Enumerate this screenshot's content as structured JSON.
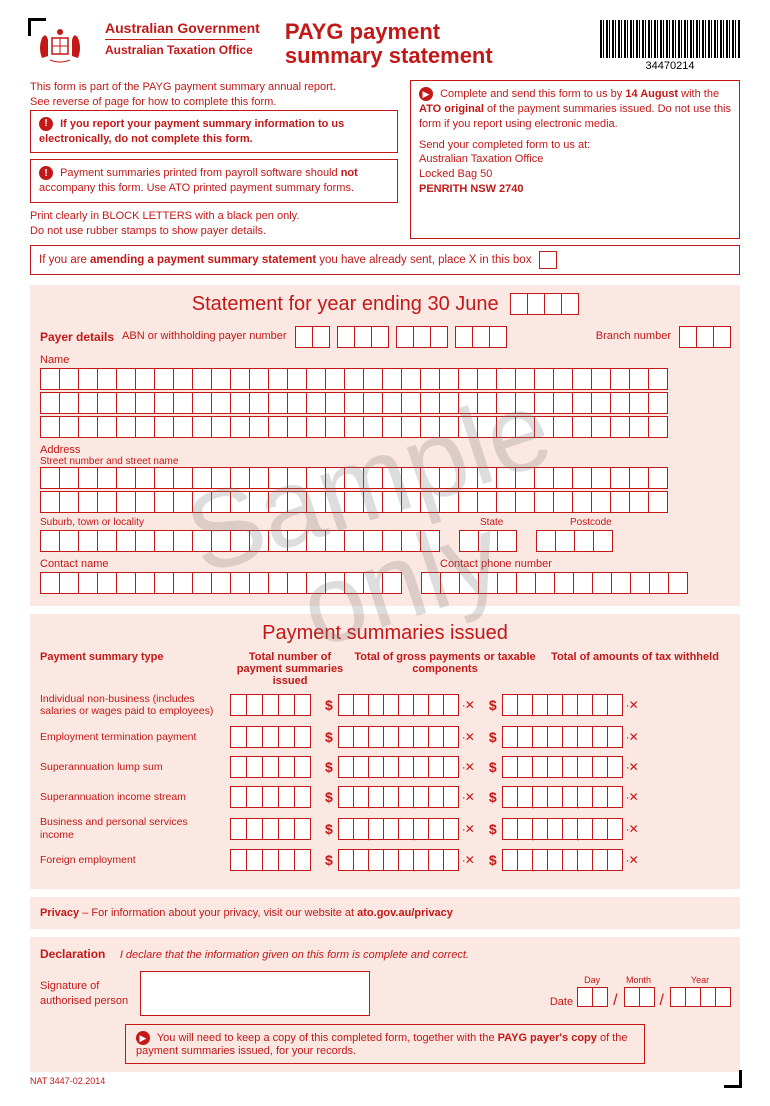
{
  "header": {
    "gov": "Australian Government",
    "ato": "Australian Taxation Office",
    "title1": "PAYG payment",
    "title2": "summary statement",
    "barcode_num": "34470214"
  },
  "intro": {
    "line1": "This form is part of the PAYG payment summary annual report.",
    "line2": "See reverse of page for how to complete this form.",
    "box1_a": "If you report your payment summary information to us electronically, do not complete this form.",
    "box2_a": "Payment summaries printed from payroll software should ",
    "box2_b": "not",
    "box2_c": " accompany this form. Use ATO printed payment summary forms.",
    "print1": "Print clearly in BLOCK LETTERS with a black pen only.",
    "print2": "Do not use rubber stamps to show payer details."
  },
  "right": {
    "r1a": "Complete and send this form to us by ",
    "r1b": "14 August",
    "r1c": " with the ",
    "r1d": "ATO original",
    "r1e": " of the payment summaries issued. Do not use this form if you report using electronic media.",
    "r2": "Send your completed form to us at:",
    "addr1": "Australian Taxation Office",
    "addr2": "Locked Bag 50",
    "addr3": "PENRITH NSW  2740"
  },
  "amend": {
    "t1": "If you are ",
    "t2": "amending a payment summary statement",
    "t3": " you have already sent, place X in this box"
  },
  "statement": {
    "title": "Statement for year ending 30 June",
    "payer_details": "Payer details",
    "abn": "ABN or withholding payer number",
    "branch": "Branch number",
    "name": "Name",
    "address": "Address",
    "street": "Street number and street name",
    "suburb": "Suburb, town or locality",
    "state": "State",
    "postcode": "Postcode",
    "contact_name": "Contact name",
    "contact_phone": "Contact phone number"
  },
  "payments": {
    "title": "Payment summaries issued",
    "h1": "Payment summary type",
    "h2": "Total number of payment summaries issued",
    "h3": "Total of gross payments or taxable components",
    "h4": "Total of amounts of tax withheld",
    "rows": [
      "Individual non-business (includes salaries or wages paid to employees)",
      "Employment termination payment",
      "Superannuation lump sum",
      "Superannuation income stream",
      "Business and personal services income",
      "Foreign employment"
    ]
  },
  "privacy": {
    "label": "Privacy",
    "text": " – For information about your privacy, visit our website at ",
    "url": "ato.gov.au/privacy"
  },
  "decl": {
    "label": "Declaration",
    "text": "I declare that the information given on this form is complete and correct.",
    "sig": "Signature of authorised person",
    "date": "Date",
    "day": "Day",
    "month": "Month",
    "year": "Year"
  },
  "footer": {
    "t1": "You will need to keep a copy of this completed form, together with the ",
    "t2": "PAYG payer's copy",
    "t3": " of the payment summaries issued, for your records.",
    "nat": "NAT 3447-02.2014"
  },
  "watermark": {
    "l1": "Sample",
    "l2": "only"
  }
}
